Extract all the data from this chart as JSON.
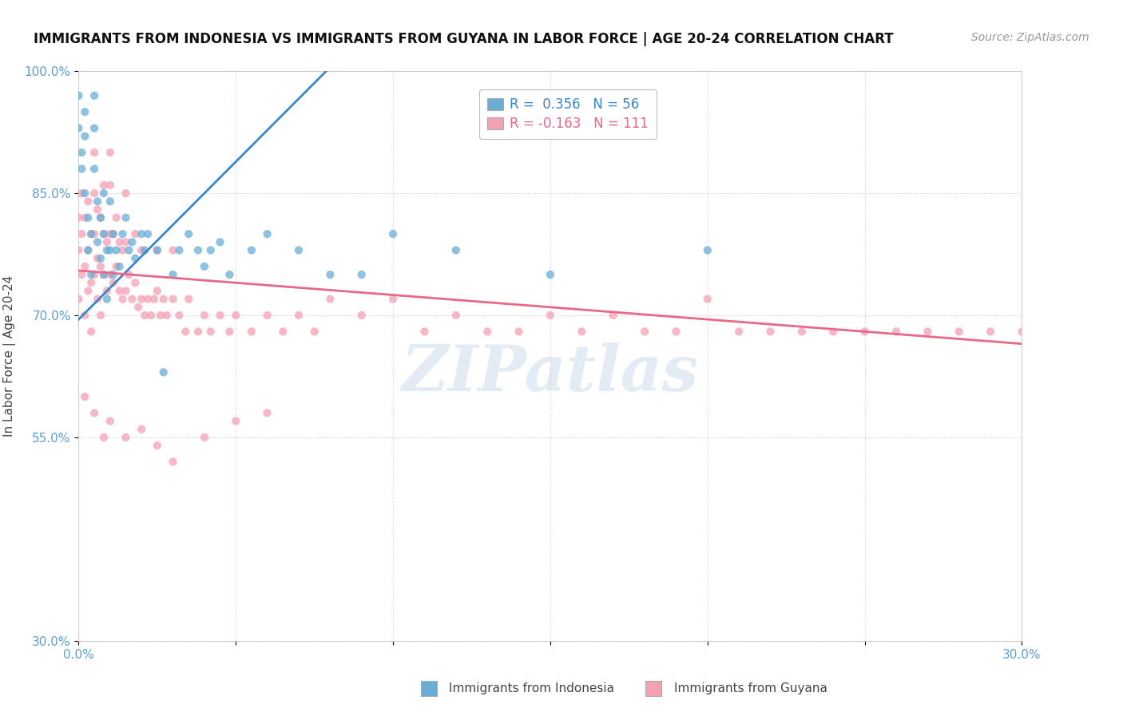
{
  "title": "IMMIGRANTS FROM INDONESIA VS IMMIGRANTS FROM GUYANA IN LABOR FORCE | AGE 20-24 CORRELATION CHART",
  "source": "Source: ZipAtlas.com",
  "ylabel": "In Labor Force | Age 20-24",
  "xlim": [
    0.0,
    0.3
  ],
  "ylim": [
    0.3,
    1.0
  ],
  "xticks": [
    0.0,
    0.05,
    0.1,
    0.15,
    0.2,
    0.25,
    0.3
  ],
  "xticklabels": [
    "0.0%",
    "",
    "",
    "",
    "",
    "",
    "30.0%"
  ],
  "yticks": [
    0.3,
    0.55,
    0.7,
    0.85,
    1.0
  ],
  "yticklabels": [
    "30.0%",
    "55.0%",
    "70.0%",
    "85.0%",
    "100.0%"
  ],
  "r_indonesia": 0.356,
  "n_indonesia": 56,
  "r_guyana": -0.163,
  "n_guyana": 111,
  "color_indonesia": "#6aaed6",
  "color_guyana": "#f4a0b5",
  "watermark": "ZIPatlas",
  "legend_indonesia": "Immigrants from Indonesia",
  "legend_guyana": "Immigrants from Guyana",
  "trend_ind_x0": 0.0,
  "trend_ind_y0": 0.695,
  "trend_ind_x1": 0.08,
  "trend_ind_y1": 1.005,
  "trend_guy_x0": 0.0,
  "trend_guy_y0": 0.755,
  "trend_guy_x1": 0.3,
  "trend_guy_y1": 0.665
}
